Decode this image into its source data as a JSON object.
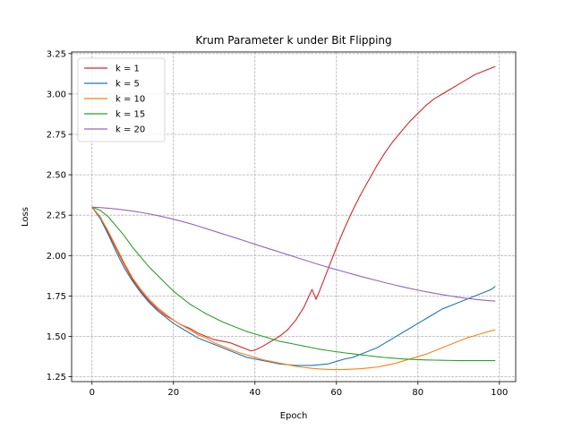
{
  "chart_data": {
    "type": "line",
    "title": "Krum Parameter k under Bit Flipping",
    "xlabel": "Epoch",
    "ylabel": "Loss",
    "xlim": [
      -5,
      104
    ],
    "ylim": [
      1.22,
      3.26
    ],
    "xticks": [
      0,
      20,
      40,
      60,
      80,
      100
    ],
    "yticks": [
      1.25,
      1.5,
      1.75,
      2.0,
      2.25,
      2.5,
      2.75,
      3.0,
      3.25
    ],
    "ytick_labels": [
      "1.25",
      "1.50",
      "1.75",
      "2.00",
      "2.25",
      "2.50",
      "2.75",
      "3.00",
      "3.25"
    ],
    "xtick_labels": [
      "0",
      "20",
      "40",
      "60",
      "80",
      "100"
    ],
    "grid": true,
    "legend_position": "top-left",
    "series": [
      {
        "name": "k = 1",
        "color": "#d62728",
        "x": [
          0,
          2,
          4,
          6,
          8,
          10,
          12,
          14,
          16,
          18,
          20,
          22,
          24,
          26,
          28,
          30,
          32,
          34,
          36,
          38,
          39,
          40,
          42,
          44,
          46,
          48,
          50,
          52,
          54,
          55,
          56,
          58,
          60,
          62,
          64,
          66,
          68,
          70,
          72,
          74,
          76,
          78,
          80,
          82,
          84,
          86,
          88,
          90,
          92,
          94,
          96,
          98,
          99
        ],
        "y": [
          2.3,
          2.24,
          2.14,
          2.04,
          1.94,
          1.85,
          1.78,
          1.72,
          1.67,
          1.63,
          1.6,
          1.57,
          1.55,
          1.52,
          1.5,
          1.48,
          1.47,
          1.46,
          1.44,
          1.42,
          1.41,
          1.415,
          1.44,
          1.47,
          1.5,
          1.54,
          1.6,
          1.68,
          1.79,
          1.73,
          1.79,
          1.92,
          2.05,
          2.17,
          2.28,
          2.38,
          2.47,
          2.56,
          2.64,
          2.71,
          2.77,
          2.83,
          2.88,
          2.93,
          2.97,
          3.0,
          3.03,
          3.06,
          3.09,
          3.12,
          3.14,
          3.16,
          3.17
        ]
      },
      {
        "name": "k = 5",
        "color": "#1f77b4",
        "x": [
          0,
          2,
          4,
          6,
          8,
          10,
          12,
          14,
          16,
          18,
          20,
          22,
          24,
          26,
          28,
          30,
          32,
          34,
          36,
          38,
          40,
          42,
          44,
          46,
          48,
          50,
          52,
          54,
          56,
          58,
          60,
          62,
          64,
          66,
          68,
          70,
          72,
          74,
          76,
          78,
          80,
          82,
          84,
          86,
          88,
          90,
          92,
          94,
          96,
          98,
          99
        ],
        "y": [
          2.3,
          2.23,
          2.13,
          2.02,
          1.92,
          1.84,
          1.77,
          1.71,
          1.66,
          1.62,
          1.58,
          1.55,
          1.52,
          1.49,
          1.47,
          1.45,
          1.43,
          1.41,
          1.39,
          1.37,
          1.36,
          1.35,
          1.34,
          1.33,
          1.325,
          1.32,
          1.32,
          1.32,
          1.325,
          1.33,
          1.345,
          1.36,
          1.37,
          1.39,
          1.41,
          1.43,
          1.46,
          1.49,
          1.52,
          1.55,
          1.58,
          1.61,
          1.64,
          1.67,
          1.69,
          1.71,
          1.73,
          1.75,
          1.77,
          1.79,
          1.81
        ]
      },
      {
        "name": "k = 10",
        "color": "#ff7f0e",
        "x": [
          0,
          2,
          4,
          6,
          8,
          10,
          12,
          14,
          16,
          18,
          20,
          22,
          24,
          26,
          28,
          30,
          32,
          34,
          36,
          38,
          40,
          42,
          44,
          46,
          48,
          50,
          52,
          54,
          56,
          58,
          60,
          62,
          64,
          66,
          68,
          70,
          72,
          74,
          76,
          78,
          80,
          82,
          84,
          86,
          88,
          90,
          92,
          94,
          96,
          98,
          99
        ],
        "y": [
          2.3,
          2.24,
          2.15,
          2.05,
          1.95,
          1.86,
          1.79,
          1.73,
          1.68,
          1.64,
          1.6,
          1.57,
          1.54,
          1.51,
          1.49,
          1.46,
          1.44,
          1.42,
          1.4,
          1.385,
          1.37,
          1.355,
          1.345,
          1.335,
          1.325,
          1.315,
          1.308,
          1.302,
          1.298,
          1.295,
          1.294,
          1.295,
          1.297,
          1.3,
          1.305,
          1.31,
          1.32,
          1.33,
          1.345,
          1.36,
          1.375,
          1.39,
          1.41,
          1.43,
          1.45,
          1.47,
          1.49,
          1.505,
          1.52,
          1.535,
          1.54
        ]
      },
      {
        "name": "k = 15",
        "color": "#2ca02c",
        "x": [
          0,
          2,
          4,
          6,
          8,
          10,
          12,
          14,
          16,
          18,
          20,
          22,
          24,
          26,
          28,
          30,
          32,
          34,
          36,
          38,
          40,
          42,
          44,
          46,
          48,
          50,
          52,
          54,
          56,
          58,
          60,
          62,
          64,
          66,
          68,
          70,
          72,
          74,
          76,
          78,
          80,
          82,
          84,
          86,
          88,
          90,
          92,
          94,
          96,
          98,
          99
        ],
        "y": [
          2.3,
          2.28,
          2.24,
          2.18,
          2.12,
          2.05,
          1.99,
          1.93,
          1.88,
          1.83,
          1.78,
          1.74,
          1.7,
          1.67,
          1.64,
          1.615,
          1.59,
          1.57,
          1.55,
          1.53,
          1.515,
          1.5,
          1.485,
          1.47,
          1.46,
          1.45,
          1.44,
          1.43,
          1.42,
          1.412,
          1.405,
          1.398,
          1.392,
          1.386,
          1.38,
          1.374,
          1.369,
          1.365,
          1.361,
          1.358,
          1.356,
          1.354,
          1.353,
          1.352,
          1.351,
          1.35,
          1.35,
          1.35,
          1.35,
          1.35,
          1.35
        ]
      },
      {
        "name": "k = 20",
        "color": "#9467bd",
        "x": [
          0,
          2,
          4,
          6,
          8,
          10,
          12,
          14,
          16,
          18,
          20,
          22,
          24,
          26,
          28,
          30,
          32,
          34,
          36,
          38,
          40,
          42,
          44,
          46,
          48,
          50,
          52,
          54,
          56,
          58,
          60,
          62,
          64,
          66,
          68,
          70,
          72,
          74,
          76,
          78,
          80,
          82,
          84,
          86,
          88,
          90,
          92,
          94,
          96,
          98,
          99
        ],
        "y": [
          2.3,
          2.297,
          2.293,
          2.288,
          2.282,
          2.275,
          2.267,
          2.258,
          2.248,
          2.237,
          2.225,
          2.212,
          2.198,
          2.183,
          2.167,
          2.151,
          2.135,
          2.119,
          2.103,
          2.087,
          2.07,
          2.054,
          2.038,
          2.022,
          2.006,
          1.99,
          1.974,
          1.958,
          1.942,
          1.927,
          1.913,
          1.899,
          1.885,
          1.871,
          1.858,
          1.845,
          1.832,
          1.82,
          1.808,
          1.797,
          1.786,
          1.776,
          1.767,
          1.758,
          1.75,
          1.742,
          1.735,
          1.729,
          1.724,
          1.72,
          1.718
        ]
      }
    ]
  }
}
